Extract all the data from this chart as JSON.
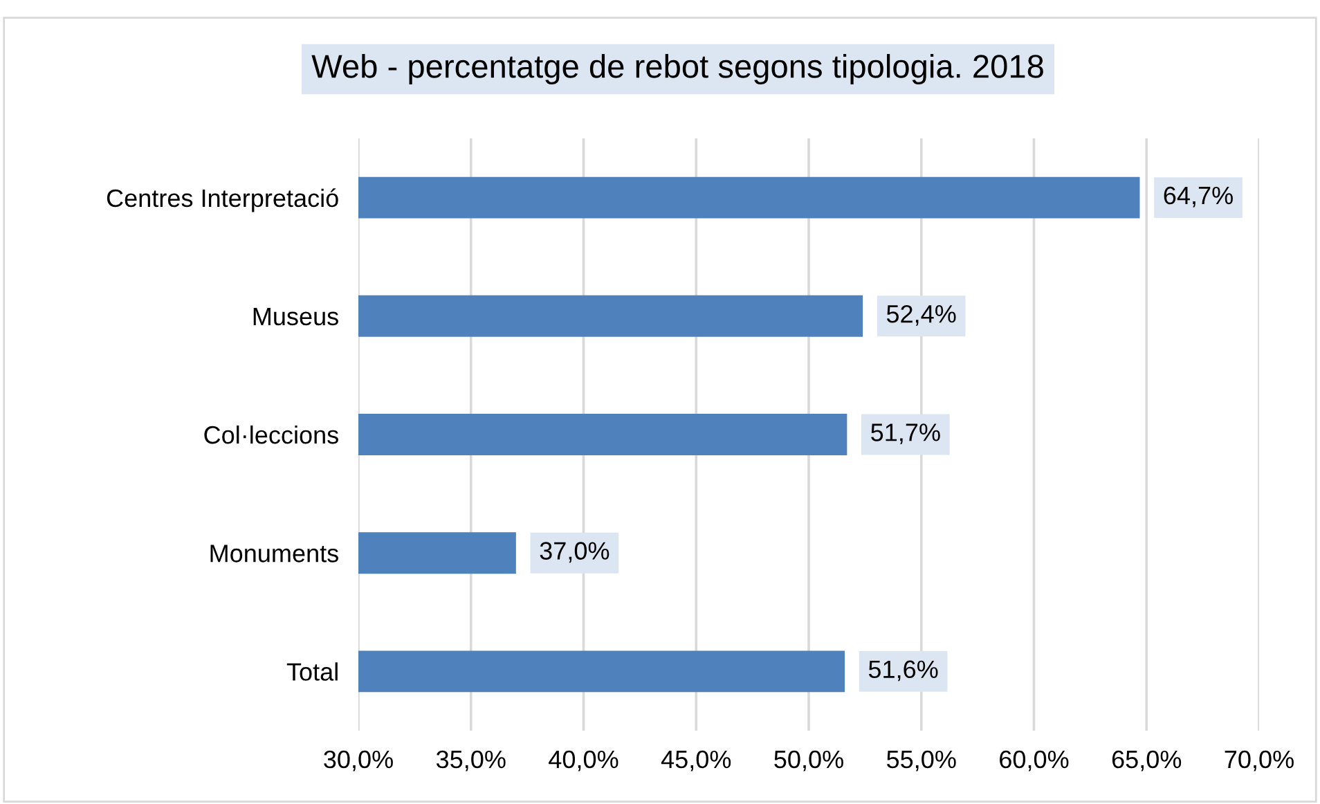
{
  "chart_data": {
    "type": "bar",
    "orientation": "horizontal",
    "title": "Web - percentatge de rebot segons tipologia. 2018",
    "categories": [
      "Centres Interpretació",
      "Museus",
      "Col·leccions",
      "Monuments",
      "Total"
    ],
    "values": [
      64.7,
      52.4,
      51.7,
      37.0,
      51.6
    ],
    "color": "#4f81bd",
    "value_labels": [
      "64,7%",
      "52,4%",
      "51,7%",
      "37,0%",
      "51,6%"
    ],
    "xlim": [
      30,
      70
    ],
    "xticks": [
      {
        "value": 30,
        "label": "30,0%"
      },
      {
        "value": 35,
        "label": "35,0%"
      },
      {
        "value": 40,
        "label": "40,0%"
      },
      {
        "value": 45,
        "label": "45,0%"
      },
      {
        "value": 50,
        "label": "50,0%"
      },
      {
        "value": 55,
        "label": "55,0%"
      },
      {
        "value": 60,
        "label": "60,0%"
      },
      {
        "value": 65,
        "label": "65,0%"
      },
      {
        "value": 70,
        "label": "70,0%"
      }
    ],
    "grid": "x"
  }
}
